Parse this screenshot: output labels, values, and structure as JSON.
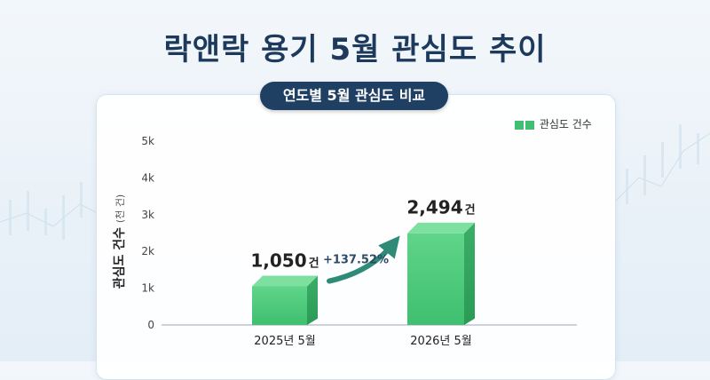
{
  "title": "락앤락 용기 5월 관심도 추이",
  "subtitle": "연도별 5월 관심도 비교",
  "chart_data": {
    "type": "bar",
    "categories": [
      "2025년 5월",
      "2026년 5월"
    ],
    "series": [
      {
        "name": "관심도 건수",
        "values": [
          1050,
          2494
        ]
      }
    ],
    "value_labels": [
      "1,050",
      "2,494"
    ],
    "value_unit": "건",
    "ylabel": "관심도 건수",
    "ylabel_unit": "(천 건)",
    "ylim": [
      0,
      5000
    ],
    "yticks": [
      0,
      1000,
      2000,
      3000,
      4000,
      5000
    ],
    "ytick_labels": [
      "0",
      "1k",
      "2k",
      "3k",
      "4k",
      "5k"
    ],
    "grid": false,
    "legend": "top-right",
    "annotation": "+137.52%",
    "colors": {
      "bar": "#3fbf6f",
      "bar_dark": "#2a9a55",
      "bar_top": "#7ee0a0",
      "arrow": "#2e8b78",
      "title": "#1d3a5c"
    }
  }
}
